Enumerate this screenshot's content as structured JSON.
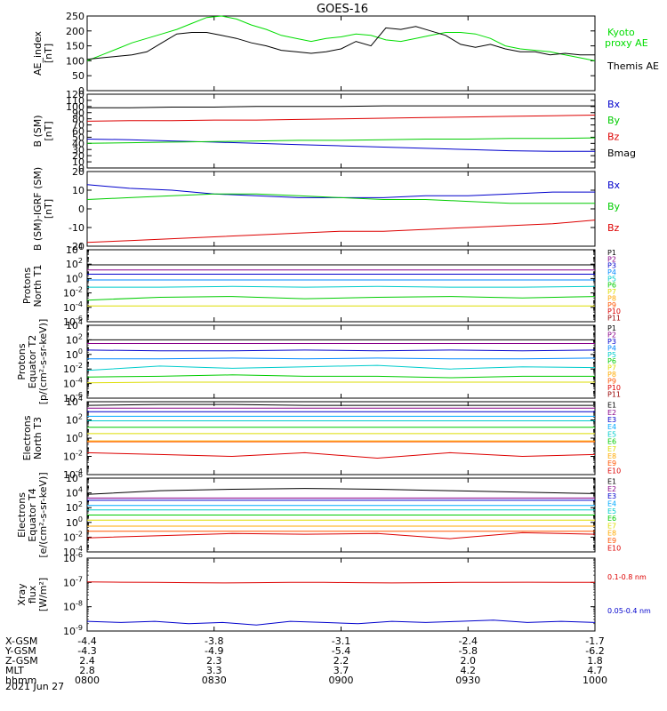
{
  "title": "GOES-16",
  "date_label": "2021 Jun 27",
  "chart_data": [
    {
      "type": "line",
      "ylabel": "AE_index [nT]",
      "ylim": [
        0,
        250
      ],
      "yticks": [
        "0",
        "50",
        "100",
        "150",
        "200",
        "250"
      ],
      "scale": "linear",
      "series": [
        {
          "name": "Kyoto proxy AE",
          "color": "#00dd00",
          "values": [
            100,
            120,
            140,
            160,
            175,
            190,
            205,
            225,
            245,
            250,
            240,
            220,
            205,
            185,
            175,
            165,
            175,
            180,
            190,
            185,
            170,
            165,
            175,
            185,
            195,
            195,
            190,
            175,
            150,
            140,
            135,
            130,
            120,
            110,
            100
          ]
        },
        {
          "name": "Themis AE",
          "color": "#000000",
          "values": [
            105,
            110,
            115,
            120,
            130,
            160,
            190,
            195,
            195,
            185,
            175,
            160,
            150,
            135,
            130,
            125,
            130,
            140,
            165,
            150,
            210,
            205,
            215,
            200,
            185,
            155,
            145,
            155,
            140,
            130,
            130,
            120,
            125,
            120,
            120
          ]
        }
      ]
    },
    {
      "type": "line",
      "ylabel": "B (SM) [nT]",
      "ylim": [
        0,
        120
      ],
      "yticks": [
        "0",
        "10",
        "20",
        "30",
        "40",
        "50",
        "60",
        "70",
        "80",
        "90",
        "100",
        "110",
        "120"
      ],
      "scale": "linear",
      "series": [
        {
          "name": "Bx",
          "color": "#0000cc",
          "values": [
            47,
            46,
            44,
            42,
            40,
            38,
            36,
            34,
            32,
            30,
            28,
            27,
            27
          ]
        },
        {
          "name": "By",
          "color": "#00cc00",
          "values": [
            40,
            41,
            42,
            43,
            44,
            45,
            45,
            46,
            47,
            47,
            48,
            48,
            49
          ]
        },
        {
          "name": "Bz",
          "color": "#dd0000",
          "values": [
            76,
            77,
            77,
            78,
            78,
            79,
            80,
            81,
            82,
            83,
            84,
            85,
            86
          ]
        },
        {
          "name": "Bmag",
          "color": "#000000",
          "values": [
            98,
            98,
            99,
            99,
            100,
            100,
            100,
            101,
            101,
            101,
            101,
            101,
            101
          ]
        }
      ]
    },
    {
      "type": "line",
      "ylabel": "B (SM)-IGRF (SM) [nT]",
      "ylim": [
        -20,
        20
      ],
      "yticks": [
        "-20",
        "-10",
        "0",
        "10",
        "20"
      ],
      "scale": "linear",
      "series": [
        {
          "name": "Bx",
          "color": "#0000cc",
          "values": [
            13,
            11,
            10,
            8,
            7,
            6,
            6,
            6,
            7,
            7,
            8,
            9,
            9
          ]
        },
        {
          "name": "By",
          "color": "#00cc00",
          "values": [
            5,
            6,
            7,
            8,
            8,
            7,
            6,
            5,
            5,
            4,
            3,
            3,
            3
          ]
        },
        {
          "name": "Bz",
          "color": "#dd0000",
          "values": [
            -18,
            -17,
            -16,
            -15,
            -14,
            -13,
            -12,
            -12,
            -11,
            -10,
            -9,
            -8,
            -6
          ]
        }
      ]
    },
    {
      "type": "line",
      "ylabel": "Protons North T1",
      "ylim_log10": [
        -6,
        4
      ],
      "yticks": [
        "10^4",
        "10^2",
        "10^0",
        "10^-2",
        "10^-4",
        "10^-6"
      ],
      "scale": "log",
      "series": [
        {
          "name": "P1",
          "color": "#000000",
          "log_values": [
            1.9,
            1.9,
            1.9,
            1.9,
            1.9,
            1.9,
            1.9,
            1.9
          ]
        },
        {
          "name": "P2",
          "color": "#880088",
          "log_values": [
            1.2,
            1.2,
            1.2,
            1.2,
            1.2,
            1.2,
            1.2,
            1.2
          ]
        },
        {
          "name": "P3",
          "color": "#0000cc",
          "log_values": [
            0.6,
            0.6,
            0.6,
            0.6,
            0.6,
            0.6,
            0.6,
            0.6
          ]
        },
        {
          "name": "P4",
          "color": "#0088ff",
          "log_values": [
            -0.2,
            -0.2,
            -0.2,
            -0.2,
            -0.2,
            -0.2,
            -0.2,
            -0.2
          ]
        },
        {
          "name": "P5",
          "color": "#00cccc",
          "log_values": [
            -1.2,
            -1.2,
            -1.1,
            -1.2,
            -1.1,
            -1.2,
            -1.2,
            -1.1
          ]
        },
        {
          "name": "P6",
          "color": "#00cc00",
          "log_values": [
            -3.0,
            -2.6,
            -2.5,
            -2.8,
            -2.6,
            -2.5,
            -2.7,
            -2.5
          ]
        },
        {
          "name": "P7",
          "color": "#dddd00",
          "log_values": [
            -3.8,
            -3.8,
            -3.8,
            -3.8,
            -3.8,
            -3.8,
            -3.8,
            -3.8
          ]
        },
        {
          "name": "P8",
          "color": "#ffaa00"
        },
        {
          "name": "P9",
          "color": "#ff5500"
        },
        {
          "name": "P10",
          "color": "#dd0000"
        },
        {
          "name": "P11",
          "color": "#990000"
        }
      ]
    },
    {
      "type": "line",
      "ylabel": "Protons Equator T2 [p/(cm²-s-sr-keV)]",
      "ylim_log10": [
        -6,
        4
      ],
      "yticks": [
        "10^4",
        "10^2",
        "10^0",
        "10^-2",
        "10^-4",
        "10^-6"
      ],
      "scale": "log",
      "series": [
        {
          "name": "P1",
          "color": "#000000",
          "log_values": [
            2.0,
            2.0,
            2.0,
            2.0,
            2.0,
            2.0,
            2.0,
            2.0
          ]
        },
        {
          "name": "P2",
          "color": "#880088",
          "log_values": [
            1.5,
            1.5,
            1.5,
            1.5,
            1.5,
            1.5,
            1.5,
            1.5
          ]
        },
        {
          "name": "P3",
          "color": "#0000cc",
          "log_values": [
            0.6,
            0.5,
            0.5,
            0.6,
            0.5,
            0.6,
            0.5,
            0.6
          ]
        },
        {
          "name": "P4",
          "color": "#0088ff",
          "log_values": [
            -0.6,
            -0.6,
            -0.5,
            -0.6,
            -0.5,
            -0.6,
            -0.6,
            -0.5
          ]
        },
        {
          "name": "P5",
          "color": "#00cccc",
          "log_values": [
            -2.2,
            -1.6,
            -1.9,
            -1.7,
            -1.5,
            -2.0,
            -1.7,
            -1.8
          ]
        },
        {
          "name": "P6",
          "color": "#00cc00",
          "log_values": [
            -3.1,
            -3.0,
            -2.8,
            -3.0,
            -3.0,
            -3.2,
            -3.0,
            -3.0
          ]
        },
        {
          "name": "P7",
          "color": "#dddd00",
          "log_values": [
            -3.9,
            -3.8,
            -3.8,
            -3.8,
            -3.8,
            -3.8,
            -3.8,
            -3.8
          ]
        },
        {
          "name": "P8",
          "color": "#ffaa00"
        },
        {
          "name": "P9",
          "color": "#ff5500"
        },
        {
          "name": "P10",
          "color": "#dd0000"
        },
        {
          "name": "P11",
          "color": "#990000"
        }
      ]
    },
    {
      "type": "line",
      "ylabel": "Electrons North T3",
      "ylim_log10": [
        -4,
        4
      ],
      "yticks": [
        "10^4",
        "10^2",
        "10^0",
        "10^-2",
        "10^-4"
      ],
      "scale": "log",
      "series": [
        {
          "name": "E1",
          "color": "#000000",
          "log_values": [
            3.6,
            3.7,
            3.7,
            3.6,
            3.6,
            3.6,
            3.6,
            3.6
          ]
        },
        {
          "name": "E2",
          "color": "#880088",
          "log_values": [
            3.3,
            3.3,
            3.3,
            3.3,
            3.3,
            3.3,
            3.3,
            3.3
          ]
        },
        {
          "name": "E3",
          "color": "#0000cc",
          "log_values": [
            2.9,
            2.9,
            2.9,
            2.9,
            2.9,
            2.9,
            2.9,
            2.9
          ]
        },
        {
          "name": "E4",
          "color": "#00aaff",
          "log_values": [
            2.4,
            2.4,
            2.4,
            2.4,
            2.4,
            2.4,
            2.4,
            2.4
          ]
        },
        {
          "name": "E5",
          "color": "#00cccc",
          "log_values": [
            1.9,
            1.9,
            1.9,
            1.9,
            1.9,
            1.9,
            1.9,
            1.9
          ]
        },
        {
          "name": "E6",
          "color": "#00cc00",
          "log_values": [
            1.2,
            1.2,
            1.2,
            1.2,
            1.2,
            1.2,
            1.2,
            1.2
          ]
        },
        {
          "name": "E7",
          "color": "#dddd00",
          "log_values": [
            0.5,
            0.5,
            0.5,
            0.5,
            0.5,
            0.5,
            0.5,
            0.5
          ]
        },
        {
          "name": "E8",
          "color": "#ffaa00",
          "log_values": [
            -0.3,
            -0.3,
            -0.3,
            -0.3,
            -0.3,
            -0.3,
            -0.3,
            -0.3
          ]
        },
        {
          "name": "E9",
          "color": "#ff5500",
          "log_values": [
            -0.4,
            -0.4,
            -0.4,
            -0.4,
            -0.4,
            -0.4,
            -0.4,
            -0.4
          ]
        },
        {
          "name": "E10",
          "color": "#dd0000",
          "log_values": [
            -1.6,
            -1.8,
            -2.0,
            -1.6,
            -2.2,
            -1.6,
            -2.0,
            -1.8
          ]
        }
      ]
    },
    {
      "type": "line",
      "ylabel": "Electrons Equator T4 [e/(cm²-s-sr-keV)]",
      "ylim_log10": [
        -4,
        6
      ],
      "yticks": [
        "10^6",
        "10^4",
        "10^2",
        "10^0",
        "10^-2",
        "10^-4"
      ],
      "scale": "log",
      "series": [
        {
          "name": "E1",
          "color": "#000000",
          "log_values": [
            3.8,
            4.3,
            4.5,
            4.6,
            4.5,
            4.3,
            4.1,
            3.9
          ]
        },
        {
          "name": "E2",
          "color": "#880088",
          "log_values": [
            3.3,
            3.3,
            3.3,
            3.3,
            3.3,
            3.3,
            3.3,
            3.3
          ]
        },
        {
          "name": "E3",
          "color": "#0000cc",
          "log_values": [
            3.0,
            3.0,
            3.0,
            3.0,
            3.0,
            3.0,
            3.0,
            3.0
          ]
        },
        {
          "name": "E4",
          "color": "#00aaff",
          "log_values": [
            2.3,
            2.3,
            2.3,
            2.3,
            2.3,
            2.3,
            2.3,
            2.3
          ]
        },
        {
          "name": "E5",
          "color": "#00cccc",
          "log_values": [
            1.7,
            1.7,
            1.7,
            1.7,
            1.7,
            1.7,
            1.7,
            1.7
          ]
        },
        {
          "name": "E6",
          "color": "#00cc00",
          "log_values": [
            1.0,
            1.0,
            1.0,
            1.0,
            1.0,
            1.0,
            1.0,
            1.0
          ]
        },
        {
          "name": "E7",
          "color": "#dddd00",
          "log_values": [
            0.3,
            0.3,
            0.3,
            0.3,
            0.3,
            0.3,
            0.3,
            0.3
          ]
        },
        {
          "name": "E8",
          "color": "#ffaa00",
          "log_values": [
            -0.5,
            -0.5,
            -0.5,
            -0.5,
            -0.5,
            -0.5,
            -0.5,
            -0.5
          ]
        },
        {
          "name": "E9",
          "color": "#ff5500",
          "log_values": [
            -1.2,
            -1.2,
            -1.2,
            -1.2,
            -1.2,
            -1.2,
            -1.2,
            -1.2
          ]
        },
        {
          "name": "E10",
          "color": "#dd0000",
          "log_values": [
            -2.1,
            -1.8,
            -1.5,
            -1.6,
            -1.5,
            -2.2,
            -1.4,
            -1.6
          ]
        }
      ]
    },
    {
      "type": "line",
      "ylabel": "Xray flux [W/m²]",
      "ylim_log10": [
        -9,
        -6
      ],
      "yticks": [
        "10^-6",
        "10^-7",
        "10^-8",
        "10^-9"
      ],
      "scale": "log",
      "series": [
        {
          "name": "0.1-0.8 nm",
          "color": "#dd0000",
          "log_values": [
            -6.98,
            -6.99,
            -7.0,
            -7.01,
            -7.02,
            -7.01,
            -7.0,
            -7.0,
            -7.01,
            -7.02,
            -7.01,
            -7.0,
            -7.0,
            -6.99,
            -7.0,
            -7.0
          ]
        },
        {
          "name": "0.05-0.4 nm",
          "color": "#0000cc",
          "log_values": [
            -8.6,
            -8.65,
            -8.6,
            -8.7,
            -8.65,
            -8.75,
            -8.6,
            -8.65,
            -8.7,
            -8.6,
            -8.65,
            -8.6,
            -8.55,
            -8.65,
            -8.6,
            -8.65
          ]
        }
      ]
    }
  ],
  "xaxis": {
    "rows": [
      {
        "label": "X-GSM",
        "values": [
          "-4.4",
          "-3.8",
          "-3.1",
          "-2.4",
          "-1.7"
        ]
      },
      {
        "label": "Y-GSM",
        "values": [
          "-4.3",
          "-4.9",
          "-5.4",
          "-5.8",
          "-6.2"
        ]
      },
      {
        "label": "Z-GSM",
        "values": [
          "2.4",
          "2.3",
          "2.2",
          "2.0",
          "1.8"
        ]
      },
      {
        "label": "MLT",
        "values": [
          "2.8",
          "3.3",
          "3.7",
          "4.2",
          "4.7"
        ]
      },
      {
        "label": "hhmm",
        "values": [
          "0800",
          "0830",
          "0900",
          "0930",
          "1000"
        ]
      }
    ]
  }
}
